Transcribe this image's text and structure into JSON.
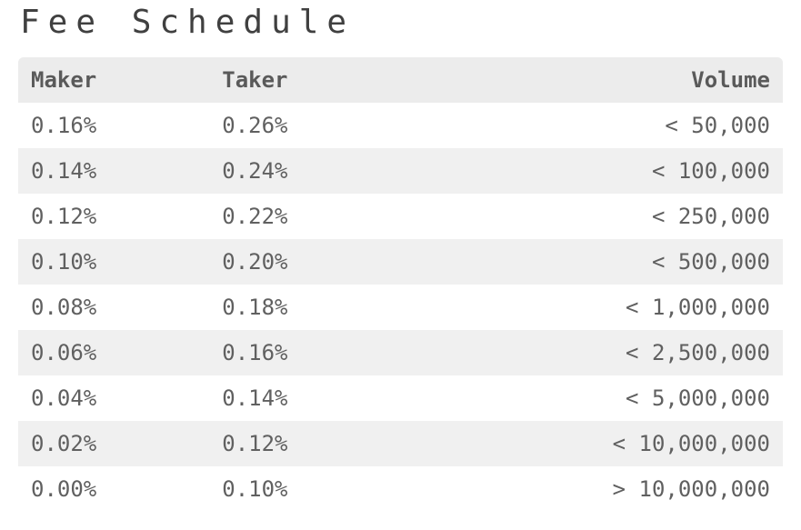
{
  "title": "Fee Schedule",
  "table": {
    "type": "table",
    "header_bg": "#ececec",
    "header_fg": "#5a5a5a",
    "row_odd_bg": "#ffffff",
    "row_even_bg": "#f0f0f0",
    "cell_fg": "#606060",
    "font_family": "monospace",
    "header_fontsize_pt": 18,
    "cell_fontsize_pt": 18,
    "columns": [
      {
        "key": "maker",
        "label": "Maker",
        "align": "left",
        "width_pct": 25
      },
      {
        "key": "taker",
        "label": "Taker",
        "align": "left",
        "width_pct": 25
      },
      {
        "key": "volume",
        "label": "Volume",
        "align": "right",
        "width_pct": 50
      }
    ],
    "rows": [
      {
        "maker": "0.16%",
        "taker": "0.26%",
        "volume": "< 50,000"
      },
      {
        "maker": "0.14%",
        "taker": "0.24%",
        "volume": "< 100,000"
      },
      {
        "maker": "0.12%",
        "taker": "0.22%",
        "volume": "< 250,000"
      },
      {
        "maker": "0.10%",
        "taker": "0.20%",
        "volume": "< 500,000"
      },
      {
        "maker": "0.08%",
        "taker": "0.18%",
        "volume": "< 1,000,000"
      },
      {
        "maker": "0.06%",
        "taker": "0.16%",
        "volume": "< 2,500,000"
      },
      {
        "maker": "0.04%",
        "taker": "0.14%",
        "volume": "< 5,000,000"
      },
      {
        "maker": "0.02%",
        "taker": "0.12%",
        "volume": "< 10,000,000"
      },
      {
        "maker": "0.00%",
        "taker": "0.10%",
        "volume": "> 10,000,000"
      }
    ]
  }
}
